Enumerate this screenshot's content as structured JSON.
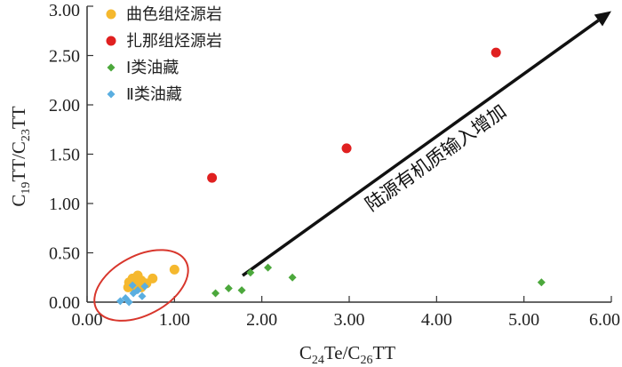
{
  "chart_data": {
    "type": "scatter",
    "xlabel": {
      "base": "C",
      "sub1": "24",
      "mid": "Te/C",
      "sub2": "26",
      "end": "TT"
    },
    "ylabel": {
      "base": "C",
      "sub1": "19",
      "mid": "TT/C",
      "sub2": "23",
      "end": "TT"
    },
    "xlim": [
      0,
      6
    ],
    "ylim": [
      0,
      3
    ],
    "x_ticks": [
      "0.00",
      "1.00",
      "2.00",
      "3.00",
      "4.00",
      "5.00",
      "6.00"
    ],
    "y_ticks": [
      "0.00",
      "0.50",
      "1.00",
      "1.50",
      "2.00",
      "2.50",
      "3.00"
    ],
    "grid": false,
    "legend_position": "top-left",
    "series": [
      {
        "name": "曲色组烃源岩",
        "marker": "circle",
        "color": "#F5B82E",
        "points": [
          [
            1.0,
            0.33
          ],
          [
            0.58,
            0.27
          ],
          [
            0.52,
            0.24
          ],
          [
            0.75,
            0.24
          ],
          [
            0.62,
            0.22
          ],
          [
            0.48,
            0.2
          ],
          [
            0.58,
            0.19
          ],
          [
            0.68,
            0.19
          ],
          [
            0.54,
            0.17
          ],
          [
            0.47,
            0.15
          ],
          [
            0.62,
            0.15
          ],
          [
            0.55,
            0.13
          ]
        ]
      },
      {
        "name": "扎那组烃源岩",
        "marker": "circle",
        "color": "#E02020",
        "points": [
          [
            1.43,
            1.26
          ],
          [
            2.97,
            1.56
          ],
          [
            4.68,
            2.53
          ]
        ]
      },
      {
        "name": "Ⅰ类油藏",
        "marker": "diamond",
        "color": "#4CA83C",
        "points": [
          [
            1.47,
            0.09
          ],
          [
            1.62,
            0.14
          ],
          [
            1.77,
            0.12
          ],
          [
            1.87,
            0.3
          ],
          [
            2.07,
            0.35
          ],
          [
            2.35,
            0.25
          ],
          [
            5.2,
            0.2
          ]
        ]
      },
      {
        "name": "Ⅱ类油藏",
        "marker": "diamond",
        "color": "#5AAEE0",
        "points": [
          [
            0.52,
            0.17
          ],
          [
            0.58,
            0.12
          ],
          [
            0.66,
            0.16
          ],
          [
            0.53,
            0.09
          ],
          [
            0.63,
            0.06
          ],
          [
            0.44,
            0.04
          ],
          [
            0.38,
            0.01
          ],
          [
            0.48,
            0.0
          ]
        ]
      }
    ],
    "annotation": {
      "text": "陆源有机质输入增加",
      "arrow_from": [
        1.78,
        0.27
      ],
      "arrow_to": [
        6.0,
        2.95
      ]
    },
    "ellipse_highlight": {
      "cx": 0.62,
      "cy": 0.17,
      "rx": 0.58,
      "ry": 0.3,
      "color": "#D8362C"
    }
  }
}
